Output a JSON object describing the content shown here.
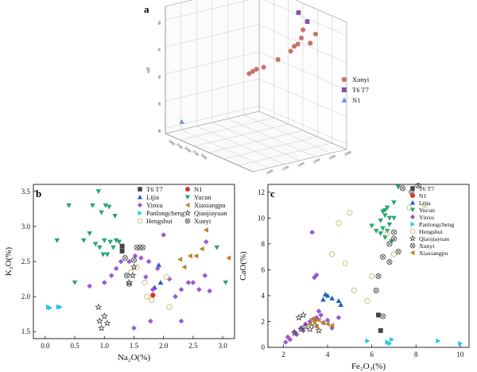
{
  "panels": {
    "a": "a",
    "b": "b",
    "c": "c"
  },
  "chart_data": [
    {
      "type": "scatter3d",
      "panel": "a",
      "zlabel": "ωZ",
      "xlabel": "",
      "ylabel": "",
      "zlim": [
        38,
        85
      ],
      "zticks": [
        "40",
        "50",
        "60",
        "70",
        "80"
      ],
      "side_ticks": [
        "3000",
        "2500",
        "2000",
        "1500",
        "1000"
      ],
      "front_ticks": [
        "1000",
        "1200",
        "1400",
        "1600",
        "1800",
        "2000"
      ],
      "series": [
        {
          "name": "Xunyi",
          "marker": "circle",
          "color": "#c8746a",
          "points": [
            [
              0.78,
              0.74,
              0.92
            ],
            [
              0.86,
              0.8,
              0.9
            ],
            [
              0.74,
              0.76,
              0.84
            ],
            [
              0.82,
              0.78,
              0.82
            ],
            [
              0.7,
              0.76,
              0.78
            ],
            [
              0.68,
              0.74,
              0.76
            ],
            [
              0.66,
              0.72,
              0.72
            ],
            [
              0.58,
              0.66,
              0.64
            ],
            [
              0.48,
              0.6,
              0.56
            ],
            [
              0.44,
              0.56,
              0.54
            ],
            [
              0.42,
              0.54,
              0.52
            ],
            [
              0.4,
              0.52,
              0.5
            ]
          ]
        },
        {
          "name": "T6 T7",
          "marker": "square",
          "color": "#8b4ea8",
          "points": [
            [
              0.6,
              0.86,
              0.98
            ],
            [
              0.7,
              0.86,
              0.94
            ]
          ]
        },
        {
          "name": "N1",
          "marker": "triangle",
          "color": "#6a8fd8",
          "points": [
            [
              0.08,
              0.1,
              0.1
            ]
          ]
        }
      ]
    },
    {
      "type": "scatter",
      "panel": "b",
      "xlabel": "Na₂O(%)",
      "ylabel": "K₂O(%)",
      "xlim": [
        -0.2,
        3.2
      ],
      "ylim": [
        1.4,
        3.6
      ],
      "xticks": [
        "0.0",
        "0.5",
        "1.0",
        "1.5",
        "2.0",
        "2.5",
        "3.0"
      ],
      "yticks": [
        "1.5",
        "2.0",
        "2.5",
        "3.0",
        "3.5"
      ],
      "series": [
        {
          "name": "T6 T7",
          "marker": "square",
          "color": "#444444",
          "points": [
            [
              1.3,
              2.65
            ],
            [
              1.3,
              2.72
            ]
          ]
        },
        {
          "name": "Lijia",
          "marker": "triangle",
          "color": "#1f5fbf",
          "points": [
            [
              1.85,
              2.13
            ],
            [
              1.92,
              2.45
            ],
            [
              1.95,
              2.2
            ]
          ]
        },
        {
          "name": "Yinxu",
          "marker": "diamond",
          "color": "#9b59d0",
          "points": [
            [
              0.75,
              2.15
            ],
            [
              1.0,
              2.2
            ],
            [
              1.12,
              2.3
            ],
            [
              1.2,
              2.4
            ],
            [
              1.28,
              2.5
            ],
            [
              1.42,
              2.5
            ],
            [
              1.52,
              2.58
            ],
            [
              1.62,
              2.55
            ],
            [
              1.7,
              2.28
            ],
            [
              1.75,
              2.5
            ],
            [
              1.82,
              2.1
            ],
            [
              1.9,
              2.4
            ],
            [
              2.0,
              2.88
            ],
            [
              2.1,
              2.25
            ],
            [
              2.2,
              2.0
            ],
            [
              2.3,
              2.1
            ],
            [
              2.42,
              2.2
            ],
            [
              2.6,
              2.1
            ],
            [
              2.7,
              2.3
            ],
            [
              2.78,
              2.08
            ],
            [
              2.72,
              2.78
            ],
            [
              2.3,
              1.65
            ],
            [
              1.78,
              1.65
            ],
            [
              1.5,
              1.55
            ],
            [
              2.5,
              2.2
            ]
          ]
        },
        {
          "name": "Panlongcheng",
          "marker": "triangle-right",
          "color": "#24c8e0",
          "points": [
            [
              0.05,
              1.85
            ],
            [
              0.08,
              1.84
            ],
            [
              0.22,
              1.85
            ],
            [
              0.25,
              1.85
            ]
          ]
        },
        {
          "name": "Hengshui",
          "marker": "open-circle",
          "color": "#c8c27a",
          "points": [
            [
              1.45,
              2.35
            ],
            [
              1.55,
              2.42
            ],
            [
              1.68,
              2.2
            ],
            [
              1.72,
              2.0
            ],
            [
              1.8,
              1.95
            ],
            [
              2.05,
              2.28
            ],
            [
              2.1,
              1.85
            ]
          ]
        },
        {
          "name": "N1",
          "marker": "circle",
          "color": "#d93030",
          "points": [
            [
              1.82,
              2.02
            ]
          ]
        },
        {
          "name": "Yucun",
          "marker": "triangle-down",
          "color": "#2aa66b",
          "points": [
            [
              0.2,
              2.8
            ],
            [
              0.4,
              3.3
            ],
            [
              0.5,
              2.2
            ],
            [
              0.65,
              2.8
            ],
            [
              0.75,
              2.9
            ],
            [
              0.8,
              3.3
            ],
            [
              0.85,
              2.75
            ],
            [
              0.9,
              3.5
            ],
            [
              0.92,
              2.7
            ],
            [
              0.95,
              3.2
            ],
            [
              0.98,
              2.6
            ],
            [
              1.0,
              2.8
            ],
            [
              1.02,
              3.3
            ],
            [
              1.05,
              2.6
            ],
            [
              1.08,
              3.28
            ],
            [
              1.1,
              2.78
            ],
            [
              1.15,
              2.7
            ],
            [
              1.2,
              2.8
            ],
            [
              1.25,
              2.78
            ],
            [
              1.18,
              3.15
            ],
            [
              2.9,
              2.7
            ],
            [
              3.05,
              2.2
            ]
          ]
        },
        {
          "name": "Xiaxiangpu",
          "marker": "triangle-left",
          "color": "#b8862b",
          "points": [
            [
              2.28,
              2.53
            ],
            [
              2.35,
              2.42
            ],
            [
              2.45,
              2.58
            ],
            [
              2.55,
              2.58
            ],
            [
              2.65,
              2.68
            ],
            [
              2.72,
              2.95
            ],
            [
              3.1,
              2.55
            ]
          ]
        },
        {
          "name": "Qiaojiayuan",
          "marker": "star",
          "color": "#444444",
          "points": [
            [
              0.9,
              1.85
            ],
            [
              0.92,
              1.65
            ],
            [
              0.95,
              1.55
            ],
            [
              1.0,
              1.72
            ],
            [
              1.05,
              1.62
            ],
            [
              1.42,
              2.2
            ],
            [
              1.48,
              2.3
            ],
            [
              1.5,
              2.42
            ]
          ]
        },
        {
          "name": "Xunyi",
          "marker": "circle-x",
          "color": "#555555",
          "points": [
            [
              1.35,
              2.55
            ],
            [
              1.38,
              2.3
            ],
            [
              1.42,
              2.18
            ],
            [
              1.55,
              2.7
            ],
            [
              1.6,
              2.7
            ],
            [
              1.65,
              2.7
            ],
            [
              1.5,
              2.52
            ]
          ]
        }
      ]
    },
    {
      "type": "scatter",
      "panel": "c",
      "xlabel": "Fe₂O₃(%)",
      "ylabel": "CaO(%)",
      "xlim": [
        1.3,
        10.4
      ],
      "ylim": [
        0,
        12.6
      ],
      "xticks": [
        "2",
        "4",
        "6",
        "8",
        "10"
      ],
      "yticks": [
        "0",
        "2",
        "4",
        "6",
        "8",
        "10",
        "12"
      ],
      "series": [
        {
          "name": "T6 T7",
          "marker": "square",
          "color": "#444444",
          "points": [
            [
              6.3,
              2.5
            ],
            [
              6.4,
              1.3
            ]
          ]
        },
        {
          "name": "N1",
          "marker": "circle",
          "color": "#d93030",
          "points": [
            [
              3.5,
              2.2
            ]
          ]
        },
        {
          "name": "Lijia",
          "marker": "triangle",
          "color": "#1f5fbf",
          "points": [
            [
              3.8,
              3.7
            ],
            [
              3.9,
              4.1
            ],
            [
              4.0,
              4.0
            ],
            [
              4.2,
              3.8
            ],
            [
              4.5,
              3.6
            ],
            [
              4.6,
              3.3
            ]
          ]
        },
        {
          "name": "Yucun",
          "marker": "triangle-down",
          "color": "#2aa66b",
          "points": [
            [
              6.0,
              9.4
            ],
            [
              6.2,
              9.0
            ],
            [
              6.4,
              9.8
            ],
            [
              6.5,
              10.5
            ],
            [
              6.6,
              10.2
            ],
            [
              6.6,
              8.5
            ],
            [
              6.7,
              10.8
            ],
            [
              6.8,
              9.5
            ],
            [
              6.8,
              10.0
            ],
            [
              6.9,
              8.2
            ],
            [
              7.0,
              11.2
            ],
            [
              7.0,
              10.0
            ],
            [
              6.7,
              9.0
            ],
            [
              6.5,
              9.2
            ],
            [
              7.2,
              12.4
            ],
            [
              6.6,
              10.6
            ],
            [
              6.4,
              8.8
            ]
          ]
        },
        {
          "name": "Yinxu",
          "marker": "diamond",
          "color": "#9b59d0",
          "points": [
            [
              2.1,
              0.4
            ],
            [
              2.2,
              0.8
            ],
            [
              2.5,
              1.2
            ],
            [
              2.8,
              1.5
            ],
            [
              3.0,
              1.8
            ],
            [
              3.2,
              2.0
            ],
            [
              3.3,
              8.9
            ],
            [
              3.4,
              5.4
            ],
            [
              3.5,
              5.6
            ],
            [
              3.5,
              2.3
            ],
            [
              3.7,
              2.5
            ],
            [
              3.8,
              1.9
            ],
            [
              4.0,
              2.1
            ],
            [
              4.2,
              1.5
            ],
            [
              4.5,
              2.3
            ],
            [
              2.3,
              0.6
            ],
            [
              2.6,
              1.0
            ],
            [
              2.9,
              1.3
            ],
            [
              3.6,
              2.8
            ]
          ]
        },
        {
          "name": "Panlongcheng",
          "marker": "triangle-right",
          "color": "#24c8e0",
          "points": [
            [
              5.8,
              0.5
            ],
            [
              6.7,
              0.4
            ],
            [
              6.8,
              0.3
            ],
            [
              6.9,
              0.6
            ],
            [
              9.0,
              0.5
            ],
            [
              10.0,
              0.3
            ]
          ]
        },
        {
          "name": "Hengshui",
          "marker": "open-circle",
          "color": "#c8c27a",
          "points": [
            [
              4.2,
              7.2
            ],
            [
              4.5,
              9.6
            ],
            [
              4.8,
              6.5
            ],
            [
              5.0,
              10.4
            ],
            [
              5.2,
              4.4
            ],
            [
              5.8,
              3.6
            ],
            [
              6.0,
              5.5
            ],
            [
              6.7,
              8.8
            ],
            [
              7.7,
              10.8
            ],
            [
              8.4,
              11.0
            ],
            [
              7.0,
              7.2
            ]
          ]
        },
        {
          "name": "Qiaojiayuan",
          "marker": "star",
          "color": "#444444",
          "points": [
            [
              2.5,
              1.1
            ],
            [
              2.8,
              1.4
            ],
            [
              3.0,
              1.6
            ],
            [
              3.2,
              1.4
            ],
            [
              3.4,
              1.7
            ],
            [
              3.6,
              1.3
            ],
            [
              2.7,
              2.3
            ],
            [
              2.9,
              2.5
            ]
          ]
        },
        {
          "name": "Xunyi",
          "marker": "circle-x",
          "color": "#555555",
          "points": [
            [
              6.2,
              4.4
            ],
            [
              6.3,
              5.5
            ],
            [
              6.5,
              7.0
            ],
            [
              6.8,
              8.0
            ],
            [
              7.0,
              8.4
            ],
            [
              7.2,
              7.4
            ],
            [
              7.4,
              12.3
            ],
            [
              7.8,
              12.0
            ],
            [
              8.1,
              12.5
            ],
            [
              6.5,
              2.4
            ],
            [
              6.8,
              6.6
            ],
            [
              7.0,
              8.9
            ]
          ]
        },
        {
          "name": "Xiaxiangpu",
          "marker": "triangle-left",
          "color": "#b8862b",
          "points": [
            [
              3.2,
              1.8
            ],
            [
              3.4,
              2.0
            ],
            [
              3.6,
              2.1
            ],
            [
              3.8,
              1.9
            ],
            [
              4.0,
              1.8
            ],
            [
              4.2,
              1.7
            ],
            [
              3.5,
              1.6
            ],
            [
              3.3,
              2.2
            ]
          ]
        }
      ]
    }
  ]
}
